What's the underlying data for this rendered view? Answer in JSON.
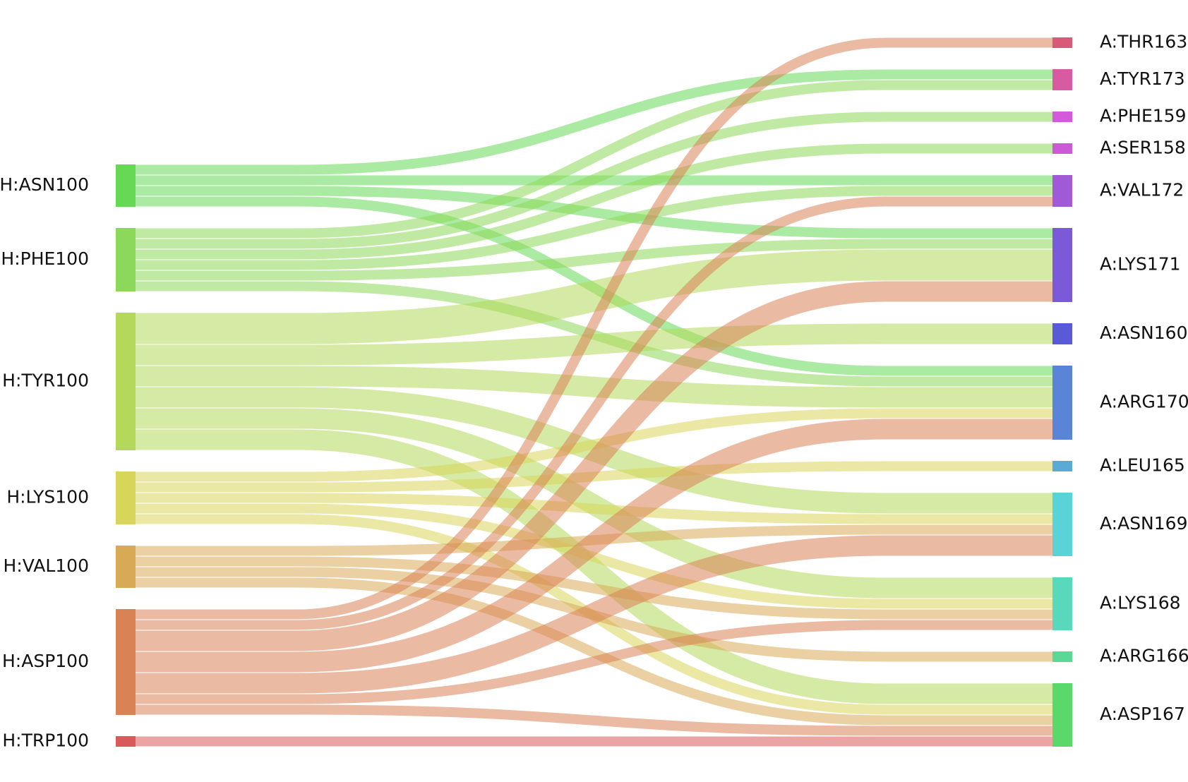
{
  "chart_data": {
    "type": "sankey",
    "nodes": [
      {
        "name": "H:ASN100",
        "color": "#66d855"
      },
      {
        "name": "H:PHE100",
        "color": "#8cd85a"
      },
      {
        "name": "H:TYR100",
        "color": "#b3d85a"
      },
      {
        "name": "H:LYS100",
        "color": "#d8d65a"
      },
      {
        "name": "H:VAL100",
        "color": "#d8aa55"
      },
      {
        "name": "H:ASP100",
        "color": "#d88255"
      },
      {
        "name": "H:TRP100",
        "color": "#d85a5a"
      },
      {
        "name": "A:THR163",
        "color": "#d85a78"
      },
      {
        "name": "A:TYR173",
        "color": "#d85aa0"
      },
      {
        "name": "A:PHE159",
        "color": "#d35ad8"
      },
      {
        "name": "A:SER158",
        "color": "#cc5ad8"
      },
      {
        "name": "A:VAL172",
        "color": "#a05ad8"
      },
      {
        "name": "A:LYS171",
        "color": "#7a5ad8"
      },
      {
        "name": "A:ASN160",
        "color": "#5a5ad8"
      },
      {
        "name": "A:ARG170",
        "color": "#5a84d8"
      },
      {
        "name": "A:LEU165",
        "color": "#5aaad8"
      },
      {
        "name": "A:ASN169",
        "color": "#5ad3d8"
      },
      {
        "name": "A:LYS168",
        "color": "#5ad8bc"
      },
      {
        "name": "A:ARG166",
        "color": "#5ad896"
      },
      {
        "name": "A:ASP167",
        "color": "#5ad86a"
      }
    ],
    "links": [
      {
        "source": 0,
        "target": 8,
        "value": 1
      },
      {
        "source": 0,
        "target": 11,
        "value": 1
      },
      {
        "source": 0,
        "target": 12,
        "value": 1
      },
      {
        "source": 0,
        "target": 14,
        "value": 1
      },
      {
        "source": 1,
        "target": 8,
        "value": 1
      },
      {
        "source": 1,
        "target": 9,
        "value": 1
      },
      {
        "source": 1,
        "target": 10,
        "value": 1
      },
      {
        "source": 1,
        "target": 11,
        "value": 1
      },
      {
        "source": 1,
        "target": 12,
        "value": 1
      },
      {
        "source": 1,
        "target": 14,
        "value": 1
      },
      {
        "source": 2,
        "target": 12,
        "value": 3
      },
      {
        "source": 2,
        "target": 13,
        "value": 2
      },
      {
        "source": 2,
        "target": 14,
        "value": 2
      },
      {
        "source": 2,
        "target": 16,
        "value": 2
      },
      {
        "source": 2,
        "target": 17,
        "value": 2
      },
      {
        "source": 2,
        "target": 19,
        "value": 2
      },
      {
        "source": 3,
        "target": 14,
        "value": 1
      },
      {
        "source": 3,
        "target": 15,
        "value": 1
      },
      {
        "source": 3,
        "target": 16,
        "value": 1
      },
      {
        "source": 3,
        "target": 17,
        "value": 1
      },
      {
        "source": 3,
        "target": 19,
        "value": 1
      },
      {
        "source": 4,
        "target": 16,
        "value": 1
      },
      {
        "source": 4,
        "target": 17,
        "value": 1
      },
      {
        "source": 4,
        "target": 18,
        "value": 1
      },
      {
        "source": 4,
        "target": 19,
        "value": 1
      },
      {
        "source": 5,
        "target": 7,
        "value": 1
      },
      {
        "source": 5,
        "target": 11,
        "value": 1
      },
      {
        "source": 5,
        "target": 12,
        "value": 2
      },
      {
        "source": 5,
        "target": 14,
        "value": 2
      },
      {
        "source": 5,
        "target": 16,
        "value": 2
      },
      {
        "source": 5,
        "target": 17,
        "value": 1
      },
      {
        "source": 5,
        "target": 19,
        "value": 1
      },
      {
        "source": 6,
        "target": 19,
        "value": 1
      }
    ]
  }
}
